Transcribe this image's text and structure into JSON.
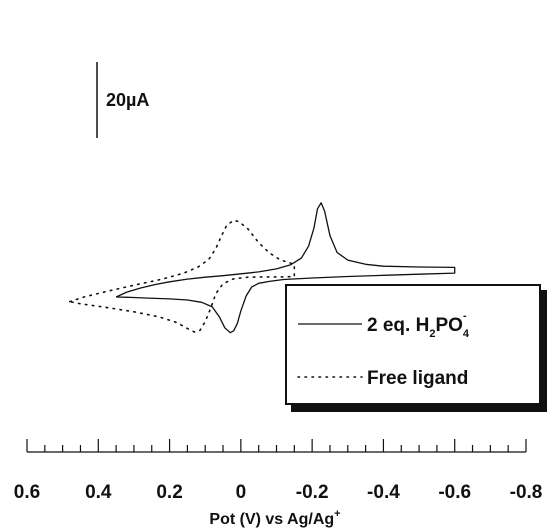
{
  "chart_data": {
    "type": "line",
    "title": "",
    "xlabel": "Pot (V) vs Ag/Ag",
    "xlabel_superscript": "+",
    "ylabel": "",
    "x_reversed": true,
    "xlim": [
      0.6,
      -0.8
    ],
    "x_ticks": [
      "0.6",
      "0.4",
      "0.2",
      "0",
      "-0.2",
      "-0.4",
      "-0.6",
      "-0.8"
    ],
    "x_minor_step": 0.05,
    "grid": false,
    "scale_bar": {
      "label": "20µA",
      "current_uA": 20
    },
    "legend": {
      "placement": "bottom-right"
    },
    "series": [
      {
        "name": "2 eq. H2PO4-",
        "legend_parts": [
          "2 eq. H",
          "2",
          "PO",
          "4",
          "-"
        ],
        "style": "solid",
        "color": "#111111",
        "points": [
          [
            0.35,
            0.0
          ],
          [
            0.32,
            1.3
          ],
          [
            0.28,
            2.4
          ],
          [
            0.24,
            3.3
          ],
          [
            0.2,
            4.0
          ],
          [
            0.15,
            4.7
          ],
          [
            0.1,
            5.2
          ],
          [
            0.05,
            5.6
          ],
          [
            0.0,
            6.1
          ],
          [
            -0.05,
            6.6
          ],
          [
            -0.1,
            7.4
          ],
          [
            -0.14,
            8.5
          ],
          [
            -0.17,
            10.3
          ],
          [
            -0.19,
            13.4
          ],
          [
            -0.205,
            18.1
          ],
          [
            -0.215,
            23.2
          ],
          [
            -0.225,
            24.8
          ],
          [
            -0.235,
            22.6
          ],
          [
            -0.25,
            16.1
          ],
          [
            -0.27,
            11.7
          ],
          [
            -0.3,
            9.7
          ],
          [
            -0.35,
            8.6
          ],
          [
            -0.4,
            8.1
          ],
          [
            -0.5,
            7.9
          ],
          [
            -0.6,
            7.8
          ],
          [
            -0.6,
            6.3
          ],
          [
            -0.5,
            6.0
          ],
          [
            -0.4,
            5.7
          ],
          [
            -0.3,
            5.4
          ],
          [
            -0.2,
            5.0
          ],
          [
            -0.12,
            4.6
          ],
          [
            -0.08,
            4.1
          ],
          [
            -0.05,
            3.6
          ],
          [
            -0.03,
            2.6
          ],
          [
            -0.015,
            0.3
          ],
          [
            0.0,
            -3.6
          ],
          [
            0.01,
            -7.0
          ],
          [
            0.02,
            -8.9
          ],
          [
            0.03,
            -9.4
          ],
          [
            0.045,
            -8.1
          ],
          [
            0.06,
            -5.3
          ],
          [
            0.08,
            -2.6
          ],
          [
            0.11,
            -1.4
          ],
          [
            0.15,
            -0.8
          ],
          [
            0.2,
            -0.5
          ],
          [
            0.26,
            -0.3
          ],
          [
            0.31,
            -0.1
          ],
          [
            0.35,
            0.0
          ]
        ]
      },
      {
        "name": "Free ligand",
        "legend_parts": [
          "Free ligand"
        ],
        "style": "dotted",
        "color": "#111111",
        "points": [
          [
            0.48,
            -1.2
          ],
          [
            0.44,
            0.0
          ],
          [
            0.38,
            1.4
          ],
          [
            0.3,
            3.1
          ],
          [
            0.22,
            4.7
          ],
          [
            0.16,
            6.3
          ],
          [
            0.12,
            7.9
          ],
          [
            0.09,
            9.9
          ],
          [
            0.07,
            12.8
          ],
          [
            0.055,
            16.0
          ],
          [
            0.04,
            18.8
          ],
          [
            0.02,
            20.2
          ],
          [
            0.005,
            19.8
          ],
          [
            -0.02,
            17.9
          ],
          [
            -0.05,
            14.3
          ],
          [
            -0.08,
            11.6
          ],
          [
            -0.11,
            9.8
          ],
          [
            -0.14,
            8.9
          ],
          [
            -0.15,
            8.6
          ],
          [
            -0.15,
            5.4
          ],
          [
            -0.12,
            5.3
          ],
          [
            -0.07,
            5.3
          ],
          [
            -0.02,
            5.2
          ],
          [
            0.02,
            4.8
          ],
          [
            0.05,
            3.5
          ],
          [
            0.07,
            0.9
          ],
          [
            0.085,
            -3.0
          ],
          [
            0.1,
            -6.5
          ],
          [
            0.115,
            -8.8
          ],
          [
            0.13,
            -9.2
          ],
          [
            0.15,
            -8.3
          ],
          [
            0.18,
            -6.7
          ],
          [
            0.23,
            -5.2
          ],
          [
            0.3,
            -3.9
          ],
          [
            0.38,
            -2.7
          ],
          [
            0.45,
            -1.8
          ],
          [
            0.48,
            -1.2
          ]
        ]
      }
    ]
  }
}
